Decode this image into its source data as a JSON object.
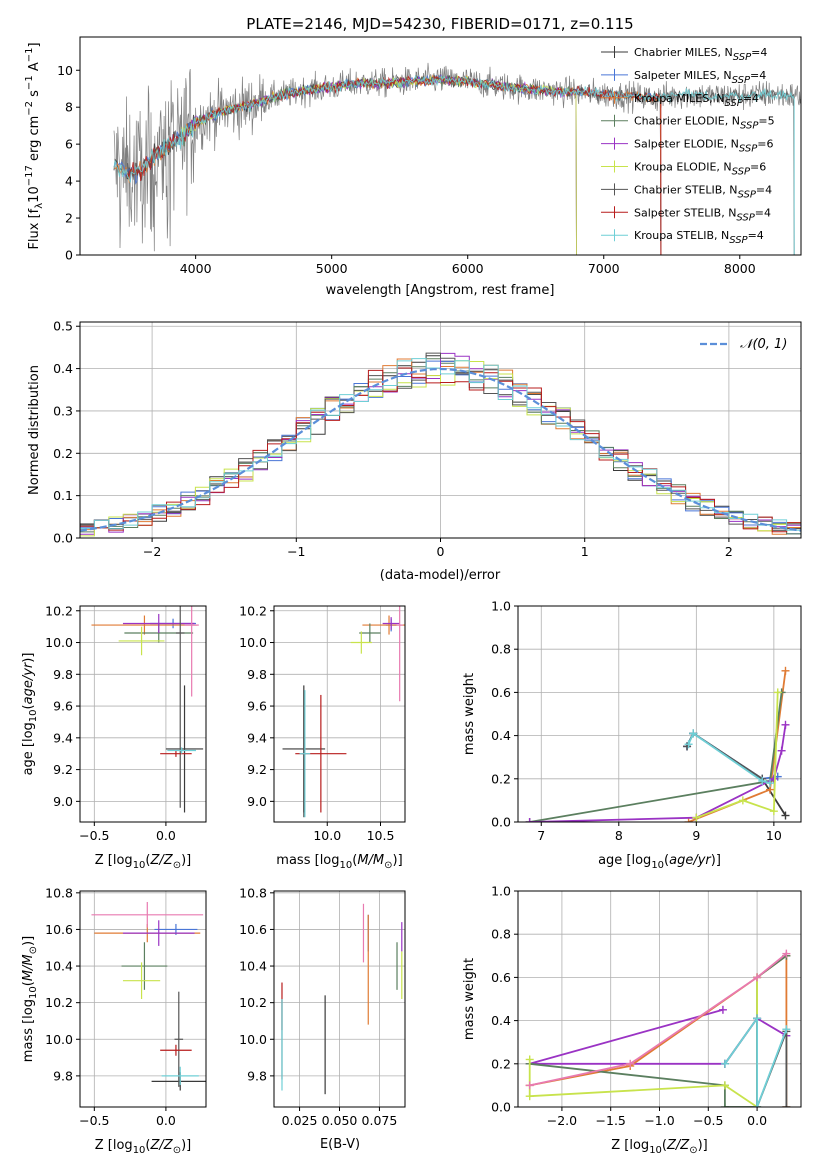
{
  "title": "PLATE=2146, MJD=54230, FIBERID=0171, z=0.115",
  "colors": {
    "Chabrier MILES": "#3a3a3a",
    "Salpeter MILES": "#4a76d6",
    "Kroupa MILES": "#e07b34",
    "Chabrier ELODIE": "#5b7f5f",
    "Salpeter ELODIE": "#9a33c4",
    "Kroupa ELODIE": "#c8e34c",
    "Chabrier STELIB": "#555555",
    "Salpeter STELIB": "#b71c1c",
    "Kroupa STELIB": "#6fcfd6",
    "Extra pink": "#e87ab0",
    "Gray spectrum": "#7f7f7f",
    "Gaussian": "#5b8fd9"
  },
  "chart_data": [
    {
      "id": "spectrum",
      "type": "line",
      "title": "PLATE=2146, MJD=54230, FIBERID=0171, z=0.115",
      "xlabel": "wavelength [Angstrom, rest frame]",
      "ylabel": "Flux [fλ10⁻¹⁷ erg cm⁻² s⁻¹ A⁻¹]",
      "xlim": [
        3150,
        8450
      ],
      "ylim": [
        0,
        11.8
      ],
      "xticks": [
        4000,
        5000,
        6000,
        7000,
        8000
      ],
      "yticks": [
        0,
        2,
        4,
        6,
        8,
        10
      ],
      "legend_position": "right",
      "legend": [
        "Chabrier MILES, N_SSP=4",
        "Salpeter MILES, N_SSP=4",
        "Kroupa MILES, N_SSP=4",
        "Chabrier ELODIE, N_SSP=5",
        "Salpeter ELODIE, N_SSP=6",
        "Kroupa ELODIE, N_SSP=6",
        "Chabrier STELIB, N_SSP=4",
        "Salpeter STELIB, N_SSP=4",
        "Kroupa STELIB, N_SSP=4"
      ],
      "legend_display": [
        {
          "pre": "Chabrier MILES, N",
          "sub": "SSP",
          "post": "=4"
        },
        {
          "pre": "Salpeter MILES, N",
          "sub": "SSP",
          "post": "=4"
        },
        {
          "pre": "Kroupa MILES, N",
          "sub": "SSP",
          "post": "=4"
        },
        {
          "pre": "Chabrier ELODIE, N",
          "sub": "SSP",
          "post": "=5"
        },
        {
          "pre": "Salpeter ELODIE, N",
          "sub": "SSP",
          "post": "=6"
        },
        {
          "pre": "Kroupa ELODIE, N",
          "sub": "SSP",
          "post": "=6"
        },
        {
          "pre": "Chabrier STELIB, N",
          "sub": "SSP",
          "post": "=4"
        },
        {
          "pre": "Salpeter STELIB, N",
          "sub": "SSP",
          "post": "=4"
        },
        {
          "pre": "Kroupa STELIB, N",
          "sub": "SSP",
          "post": "=4"
        }
      ],
      "continuum": [
        [
          3400,
          4.9
        ],
        [
          3500,
          4.4
        ],
        [
          3600,
          4.6
        ],
        [
          3700,
          5.3
        ],
        [
          3800,
          5.9
        ],
        [
          3900,
          6.4
        ],
        [
          4000,
          7.2
        ],
        [
          4200,
          7.8
        ],
        [
          4400,
          8.1
        ],
        [
          4600,
          8.6
        ],
        [
          4800,
          8.9
        ],
        [
          5000,
          9.1
        ],
        [
          5200,
          9.3
        ],
        [
          5400,
          9.3
        ],
        [
          5600,
          9.4
        ],
        [
          5800,
          9.5
        ],
        [
          6000,
          9.4
        ],
        [
          6200,
          9.2
        ],
        [
          6400,
          9.0
        ],
        [
          6600,
          8.9
        ],
        [
          6800,
          8.8
        ],
        [
          7000,
          8.7
        ],
        [
          7200,
          8.6
        ],
        [
          7400,
          8.5
        ],
        [
          7600,
          8.7
        ],
        [
          7800,
          8.6
        ],
        [
          8000,
          8.6
        ],
        [
          8200,
          8.7
        ],
        [
          8400,
          8.6
        ]
      ],
      "spectrum_range": [
        3400,
        8450
      ],
      "model_ranges": [
        [
          3400,
          7420
        ],
        [
          3400,
          7420
        ],
        [
          3400,
          7420
        ],
        [
          3900,
          6800
        ],
        [
          3900,
          6800
        ],
        [
          3900,
          6800
        ],
        [
          3500,
          8400
        ],
        [
          3500,
          7420
        ],
        [
          3400,
          8400
        ]
      ]
    },
    {
      "id": "residuals",
      "type": "step",
      "xlabel": "(data-model)/error",
      "ylabel": "Normed distribution",
      "xlim": [
        -2.5,
        2.5
      ],
      "ylim": [
        0,
        0.51
      ],
      "xticks": [
        -2,
        -1,
        0,
        1,
        2
      ],
      "yticks": [
        0.0,
        0.1,
        0.2,
        0.3,
        0.4,
        0.5
      ],
      "legend_position": "top-right",
      "legend": [
        "𝒩(0, 1)"
      ],
      "bin_width": 0.1,
      "bin_start": -2.5,
      "gaussian": {
        "mu": 0,
        "sigma": 1
      }
    },
    {
      "id": "age_vs_Z",
      "type": "errorbar",
      "xlabel": "Z [log10(Z/Z⊙)]",
      "ylabel": "age  [log10(age/yr)]",
      "xlim": [
        -0.6,
        0.28
      ],
      "ylim": [
        8.87,
        10.23
      ],
      "xticks": [
        -0.5,
        0.0
      ],
      "yticks": [
        9.0,
        9.2,
        9.4,
        9.6,
        9.8,
        10.0,
        10.2
      ],
      "points": [
        {
          "s": "Chabrier MILES",
          "x": 0.13,
          "y": 9.33,
          "xe": 0.13,
          "ye": 0.4
        },
        {
          "s": "Salpeter MILES",
          "x": 0.05,
          "y": 10.12,
          "xe": 0.16,
          "ye": 0.03
        },
        {
          "s": "Kroupa MILES",
          "x": -0.15,
          "y": 10.11,
          "xe": 0.37,
          "ye": 0.06
        },
        {
          "s": "Chabrier ELODIE",
          "x": -0.05,
          "y": 10.06,
          "xe": 0.24,
          "ye": 0.06
        },
        {
          "s": "Salpeter ELODIE",
          "x": -0.05,
          "y": 10.12,
          "xe": 0.25,
          "ye": 0.06
        },
        {
          "s": "Kroupa ELODIE",
          "x": -0.17,
          "y": 10.01,
          "xe": 0.16,
          "ye": 0.09
        },
        {
          "s": "Chabrier STELIB",
          "x": 0.1,
          "y": 10.06,
          "xe": 0.03,
          "ye": 1.1
        },
        {
          "s": "Salpeter STELIB",
          "x": 0.07,
          "y": 9.3,
          "xe": 0.11,
          "ye": 0.02
        },
        {
          "s": "Kroupa STELIB",
          "x": 0.11,
          "y": 9.32,
          "xe": 0.1,
          "ye": 0.02
        },
        {
          "s": "Extra pink",
          "x": 0.18,
          "y": 10.11,
          "xe": 0.05,
          "ye": 0.45
        }
      ]
    },
    {
      "id": "age_vs_mass",
      "type": "errorbar",
      "xlabel": "mass [log10(M/M⊙)]",
      "ylabel": "",
      "xlim": [
        9.5,
        10.73
      ],
      "ylim": [
        8.87,
        10.23
      ],
      "xticks": [
        10.0,
        10.5
      ],
      "yticks": [
        9.0,
        9.2,
        9.4,
        9.6,
        9.8,
        10.0,
        10.2
      ],
      "points": [
        {
          "s": "Chabrier MILES",
          "x": 9.78,
          "y": 9.33,
          "xe": 0.2,
          "ye": 0.4
        },
        {
          "s": "Salpeter MILES",
          "x": 10.6,
          "y": 10.11,
          "xe": 0.05,
          "ye": 0.04
        },
        {
          "s": "Kroupa MILES",
          "x": 10.58,
          "y": 10.11,
          "xe": 0.25,
          "ye": 0.06
        },
        {
          "s": "Chabrier ELODIE",
          "x": 10.4,
          "y": 10.06,
          "xe": 0.1,
          "ye": 0.06
        },
        {
          "s": "Salpeter ELODIE",
          "x": 10.6,
          "y": 10.12,
          "xe": 0.08,
          "ye": 0.04
        },
        {
          "s": "Kroupa ELODIE",
          "x": 10.32,
          "y": 10.0,
          "xe": 0.1,
          "ye": 0.07
        },
        {
          "s": "Chabrier STELIB",
          "x": 9.78,
          "y": 9.3,
          "xe": 0.02,
          "ye": 0.4
        },
        {
          "s": "Salpeter STELIB",
          "x": 9.94,
          "y": 9.3,
          "xe": 0.24,
          "ye": 0.37
        },
        {
          "s": "Kroupa STELIB",
          "x": 9.79,
          "y": 9.3,
          "xe": 0.05,
          "ye": 0.4
        },
        {
          "s": "Extra pink",
          "x": 10.68,
          "y": 10.11,
          "xe": 0.03,
          "ye": 0.48
        }
      ]
    },
    {
      "id": "weight_vs_age",
      "type": "line",
      "xlabel": "age  [log10(age/yr)]",
      "ylabel": "mass weight",
      "xlim": [
        6.7,
        10.35
      ],
      "ylim": [
        0,
        1.0
      ],
      "xticks": [
        7,
        8,
        9,
        10
      ],
      "yticks": [
        0.0,
        0.2,
        0.4,
        0.6,
        0.8,
        1.0
      ],
      "series": [
        {
          "s": "Chabrier MILES",
          "pts": [
            [
              8.88,
              0.35
            ],
            [
              8.96,
              0.41
            ],
            [
              9.85,
              0.2
            ],
            [
              10.15,
              0.03
            ]
          ]
        },
        {
          "s": "Salpeter MILES",
          "pts": [
            [
              8.88,
              0.35
            ],
            [
              8.96,
              0.41
            ],
            [
              9.85,
              0.2
            ],
            [
              10.05,
              0.21
            ]
          ]
        },
        {
          "s": "Kroupa MILES",
          "pts": [
            [
              8.9,
              0.0
            ],
            [
              9.95,
              0.15
            ],
            [
              10.15,
              0.7
            ]
          ]
        },
        {
          "s": "Chabrier ELODIE",
          "pts": [
            [
              6.85,
              0.0
            ],
            [
              9.95,
              0.19
            ],
            [
              10.1,
              0.6
            ]
          ]
        },
        {
          "s": "Salpeter ELODIE",
          "pts": [
            [
              6.85,
              0.0
            ],
            [
              9.0,
              0.02
            ],
            [
              10.0,
              0.2
            ],
            [
              10.1,
              0.33
            ],
            [
              10.15,
              0.45
            ]
          ]
        },
        {
          "s": "Kroupa ELODIE",
          "pts": [
            [
              9.0,
              0.02
            ],
            [
              9.6,
              0.1
            ],
            [
              10.0,
              0.05
            ],
            [
              10.05,
              0.6
            ]
          ]
        },
        {
          "s": "Chabrier STELIB",
          "pts": [
            [
              8.88,
              0.35
            ],
            [
              8.96,
              0.41
            ],
            [
              9.85,
              0.2
            ]
          ]
        },
        {
          "s": "Kroupa STELIB",
          "pts": [
            [
              8.9,
              0.36
            ],
            [
              8.96,
              0.41
            ],
            [
              9.85,
              0.19
            ],
            [
              9.95,
              0.18
            ]
          ]
        }
      ]
    },
    {
      "id": "mass_vs_Z",
      "type": "errorbar",
      "xlabel": "Z [log10(Z/Z⊙)]",
      "ylabel": "mass [log10(M/M⊙)]",
      "xlim": [
        -0.6,
        0.28
      ],
      "ylim": [
        9.63,
        10.81
      ],
      "xticks": [
        -0.5,
        0.0
      ],
      "yticks": [
        9.8,
        10.0,
        10.2,
        10.4,
        10.6,
        10.8
      ],
      "points": [
        {
          "s": "Chabrier MILES",
          "x": 0.1,
          "y": 9.77,
          "xe": 0.2,
          "ye": 0.05
        },
        {
          "s": "Salpeter MILES",
          "x": 0.07,
          "y": 10.6,
          "xe": 0.15,
          "ye": 0.03
        },
        {
          "s": "Kroupa MILES",
          "x": -0.13,
          "y": 10.58,
          "xe": 0.37,
          "ye": 0.05
        },
        {
          "s": "Chabrier ELODIE",
          "x": -0.15,
          "y": 10.4,
          "xe": 0.16,
          "ye": 0.13
        },
        {
          "s": "Salpeter ELODIE",
          "x": -0.05,
          "y": 10.58,
          "xe": 0.25,
          "ye": 0.07
        },
        {
          "s": "Kroupa ELODIE",
          "x": -0.17,
          "y": 10.32,
          "xe": 0.13,
          "ye": 0.1
        },
        {
          "s": "Chabrier STELIB",
          "x": 0.09,
          "y": 10.0,
          "xe": 0.03,
          "ye": 0.26
        },
        {
          "s": "Salpeter STELIB",
          "x": 0.07,
          "y": 9.94,
          "xe": 0.11,
          "ye": 0.03
        },
        {
          "s": "Kroupa STELIB",
          "x": 0.1,
          "y": 9.8,
          "xe": 0.13,
          "ye": 0.05
        },
        {
          "s": "Extra pink",
          "x": -0.13,
          "y": 10.68,
          "xe": 0.39,
          "ye": 0.07
        }
      ]
    },
    {
      "id": "mass_vs_ebv",
      "type": "errorbar",
      "xlabel": "E(B-V)",
      "ylabel": "",
      "xlim": [
        0.009,
        0.091
      ],
      "ylim": [
        9.63,
        10.81
      ],
      "xticks": [
        0.025,
        0.05,
        0.075
      ],
      "xtick_labels": [
        "0.025",
        "0.050",
        "0.075"
      ],
      "yticks": [
        9.8,
        10.0,
        10.2,
        10.4,
        10.6,
        10.8
      ],
      "points": [
        {
          "s": "Chabrier MILES",
          "x": 0.041,
          "y": 9.97,
          "xe": 0,
          "ye": 0.27
        },
        {
          "s": "Salpeter MILES",
          "x": 0.068,
          "y": 10.58,
          "xe": 0,
          "ye": 0.1
        },
        {
          "s": "Kroupa MILES",
          "x": 0.068,
          "y": 10.38,
          "xe": 0,
          "ye": 0.3
        },
        {
          "s": "Chabrier ELODIE",
          "x": 0.086,
          "y": 10.4,
          "xe": 0,
          "ye": 0.13
        },
        {
          "s": "Salpeter ELODIE",
          "x": 0.089,
          "y": 10.56,
          "xe": 0,
          "ye": 0.08
        },
        {
          "s": "Kroupa ELODIE",
          "x": 0.089,
          "y": 10.35,
          "xe": 0,
          "ye": 0.13
        },
        {
          "s": "Chabrier STELIB",
          "x": 0.014,
          "y": 10.0,
          "xe": 0,
          "ye": 0.22
        },
        {
          "s": "Salpeter STELIB",
          "x": 0.014,
          "y": 10.18,
          "xe": 0,
          "ye": 0.13
        },
        {
          "s": "Kroupa STELIB",
          "x": 0.014,
          "y": 9.97,
          "xe": 0,
          "ye": 0.25
        },
        {
          "s": "Extra pink",
          "x": 0.065,
          "y": 10.58,
          "xe": 0,
          "ye": 0.16
        }
      ]
    },
    {
      "id": "weight_vs_Z",
      "type": "line",
      "xlabel": "Z [log10(Z/Z⊙)]",
      "ylabel": "mass weight",
      "xlim": [
        -2.45,
        0.45
      ],
      "ylim": [
        0,
        1.0
      ],
      "xticks": [
        -2.0,
        -1.5,
        -1.0,
        -0.5,
        0.0
      ],
      "xtick_labels": [
        "−2.0",
        "−1.5",
        "−1.0",
        "−0.5",
        "0.0"
      ],
      "yticks": [
        0.0,
        0.2,
        0.4,
        0.6,
        0.8,
        1.0
      ],
      "series": [
        {
          "s": "Salpeter ELODIE",
          "pts": [
            [
              -0.35,
              0.45
            ],
            [
              -2.33,
              0.2
            ],
            [
              -0.33,
              0.2
            ],
            [
              0.0,
              0.41
            ],
            [
              0.3,
              0.33
            ]
          ]
        },
        {
          "s": "Kroupa MILES",
          "pts": [
            [
              -2.33,
              0.1
            ],
            [
              -1.3,
              0.19
            ],
            [
              0.0,
              0.6
            ],
            [
              0.3,
              0.7
            ],
            [
              0.3,
              0.0
            ]
          ]
        },
        {
          "s": "Chabrier ELODIE",
          "pts": [
            [
              -2.33,
              0.2
            ],
            [
              -0.33,
              0.1
            ],
            [
              -0.33,
              0.0
            ],
            [
              0.0,
              0.0
            ],
            [
              0.0,
              0.6
            ],
            [
              0.3,
              0.7
            ]
          ]
        },
        {
          "s": "Kroupa ELODIE",
          "pts": [
            [
              -2.33,
              0.22
            ],
            [
              -2.33,
              0.05
            ],
            [
              -0.33,
              0.1
            ],
            [
              0.0,
              0.0
            ],
            [
              0.0,
              0.6
            ]
          ]
        },
        {
          "s": "Chabrier STELIB",
          "pts": [
            [
              -0.33,
              0.2
            ],
            [
              0.0,
              0.41
            ],
            [
              0.0,
              0.0
            ],
            [
              0.3,
              0.35
            ],
            [
              0.3,
              0.0
            ]
          ]
        },
        {
          "s": "Kroupa STELIB",
          "pts": [
            [
              -0.33,
              0.2
            ],
            [
              0.0,
              0.41
            ],
            [
              0.0,
              0.0
            ],
            [
              0.3,
              0.36
            ]
          ]
        },
        {
          "s": "Extra pink",
          "pts": [
            [
              -2.33,
              0.1
            ],
            [
              -1.3,
              0.2
            ],
            [
              0.0,
              0.6
            ],
            [
              0.3,
              0.71
            ]
          ]
        }
      ]
    }
  ]
}
